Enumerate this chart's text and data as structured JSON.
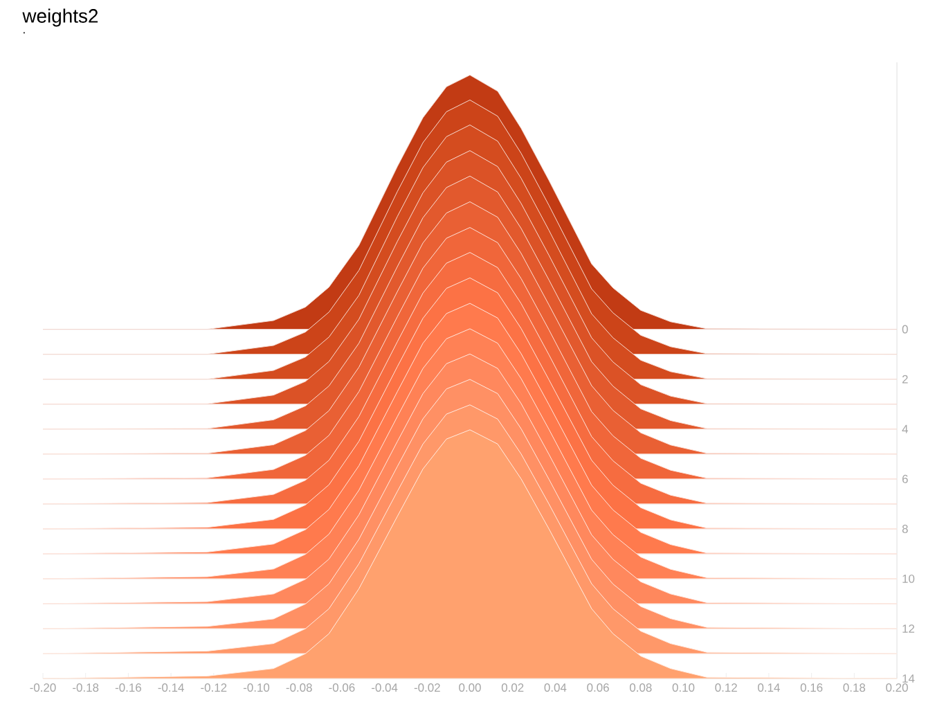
{
  "chart_data": {
    "type": "area",
    "title": "weights2",
    "subtitle": ".",
    "x": [
      -0.2,
      -0.123,
      -0.092,
      -0.077,
      -0.066,
      -0.052,
      -0.034,
      -0.022,
      -0.011,
      0.0,
      0.013,
      0.024,
      0.037,
      0.057,
      0.067,
      0.08,
      0.094,
      0.111,
      0.2
    ],
    "series": [
      {
        "color": "#c23b14",
        "values": [
          0,
          0,
          -0.35,
          -0.89,
          -1.69,
          -3.36,
          -6.52,
          -8.48,
          -9.72,
          -10.19,
          -9.54,
          -8.05,
          -5.97,
          -2.62,
          -1.66,
          -0.76,
          -0.3,
          -0.02,
          0
        ]
      },
      {
        "color": "#cc4419",
        "values": [
          1,
          1,
          0.65,
          0.11,
          -0.69,
          -2.36,
          -5.52,
          -7.48,
          -8.72,
          -9.19,
          -8.54,
          -7.05,
          -4.97,
          -1.62,
          -0.66,
          0.24,
          0.7,
          0.98,
          1
        ]
      },
      {
        "color": "#d44c1f",
        "values": [
          2,
          2,
          1.65,
          1.11,
          0.31,
          -1.36,
          -4.52,
          -6.48,
          -7.72,
          -8.19,
          -7.54,
          -6.05,
          -3.97,
          -0.62,
          0.34,
          1.24,
          1.7,
          1.98,
          2
        ]
      },
      {
        "color": "#db5226",
        "values": [
          3,
          2.99,
          2.64,
          2.09,
          1.29,
          -0.4,
          -3.52,
          -5.47,
          -6.7,
          -7.16,
          -6.52,
          -5.04,
          -2.97,
          0.34,
          1.31,
          2.22,
          2.68,
          2.98,
          3
        ]
      },
      {
        "color": "#e2592d",
        "values": [
          4,
          3.98,
          3.63,
          3.07,
          2.27,
          0.56,
          -2.51,
          -4.47,
          -5.68,
          -6.14,
          -5.5,
          -4.04,
          -1.98,
          1.3,
          2.28,
          3.19,
          3.66,
          3.98,
          4
        ]
      },
      {
        "color": "#e96034",
        "values": [
          5,
          4.97,
          4.63,
          4.06,
          3.26,
          1.52,
          -1.51,
          -3.46,
          -4.66,
          -5.11,
          -4.49,
          -3.04,
          -0.98,
          2.26,
          3.25,
          4.15,
          4.64,
          4.97,
          5
        ]
      },
      {
        "color": "#f0663a",
        "values": [
          6,
          5.96,
          5.62,
          5.05,
          4.25,
          2.5,
          -0.5,
          -2.45,
          -3.65,
          -4.08,
          -3.47,
          -2.03,
          0.02,
          3.3,
          4.27,
          5.17,
          5.65,
          5.97,
          6
        ]
      },
      {
        "color": "#f66c40",
        "values": [
          7,
          6.95,
          6.62,
          6.05,
          5.25,
          3.5,
          0.5,
          -1.45,
          -2.65,
          -3.08,
          -2.47,
          -1.03,
          1.02,
          4.3,
          5.27,
          6.17,
          6.65,
          6.97,
          7
        ]
      },
      {
        "color": "#fc7245",
        "values": [
          8,
          7.94,
          7.62,
          7.04,
          6.23,
          4.49,
          1.5,
          -0.44,
          -1.64,
          -2.06,
          -1.46,
          -0.03,
          2.02,
          5.25,
          6.25,
          7.15,
          7.64,
          7.97,
          8
        ]
      },
      {
        "color": "#ff7a4d",
        "values": [
          9,
          8.93,
          8.61,
          8.03,
          7.22,
          5.47,
          2.5,
          0.56,
          -0.63,
          -1.04,
          -0.45,
          0.98,
          3.02,
          6.25,
          7.24,
          8.14,
          8.63,
          8.97,
          9
        ]
      },
      {
        "color": "#ff8155",
        "values": [
          10,
          9.92,
          9.61,
          9.02,
          8.21,
          6.45,
          3.5,
          1.57,
          0.38,
          -0.02,
          0.56,
          1.98,
          4.01,
          7.25,
          8.23,
          9.13,
          9.62,
          9.96,
          10
        ]
      },
      {
        "color": "#ff885d",
        "values": [
          11,
          10.92,
          10.61,
          10.02,
          9.21,
          7.44,
          4.5,
          2.58,
          1.38,
          0.99,
          1.57,
          2.98,
          5.01,
          8.24,
          9.22,
          10.12,
          10.61,
          10.96,
          11
        ]
      },
      {
        "color": "#ff9064",
        "values": [
          12,
          11.91,
          11.61,
          11.01,
          10.2,
          8.42,
          5.5,
          3.59,
          2.39,
          2.01,
          2.58,
          3.99,
          6.01,
          9.22,
          10.21,
          11.11,
          11.6,
          11.95,
          12
        ]
      },
      {
        "color": "#ff9869",
        "values": [
          13,
          12.9,
          12.6,
          12.0,
          11.2,
          9.4,
          6.5,
          4.6,
          3.4,
          3.03,
          3.6,
          5.0,
          7.0,
          10.2,
          11.2,
          12.1,
          12.6,
          12.95,
          13
        ]
      },
      {
        "color": "#ffa16e",
        "values": [
          14,
          13.9,
          13.6,
          13.0,
          12.2,
          10.4,
          7.5,
          5.6,
          4.4,
          4.03,
          4.6,
          6.0,
          8.0,
          11.2,
          12.2,
          13.1,
          13.6,
          13.95,
          14
        ]
      }
    ],
    "xlim": [
      -0.2,
      0.2
    ],
    "xticks": [
      {
        "value": -0.2,
        "label": "-0.20"
      },
      {
        "value": -0.18,
        "label": "-0.18"
      },
      {
        "value": -0.16,
        "label": "-0.16"
      },
      {
        "value": -0.14,
        "label": "-0.14"
      },
      {
        "value": -0.12,
        "label": "-0.12"
      },
      {
        "value": -0.1,
        "label": "-0.10"
      },
      {
        "value": -0.08,
        "label": "-0.08"
      },
      {
        "value": -0.06,
        "label": "-0.06"
      },
      {
        "value": -0.04,
        "label": "-0.04"
      },
      {
        "value": -0.02,
        "label": "-0.02"
      },
      {
        "value": 0,
        "label": "0.00"
      },
      {
        "value": 0.02,
        "label": "0.02"
      },
      {
        "value": 0.04,
        "label": "0.04"
      },
      {
        "value": 0.06,
        "label": "0.06"
      },
      {
        "value": 0.08,
        "label": "0.08"
      },
      {
        "value": 0.1,
        "label": "0.10"
      },
      {
        "value": 0.12,
        "label": "0.12"
      },
      {
        "value": 0.14,
        "label": "0.14"
      },
      {
        "value": 0.16,
        "label": "0.16"
      },
      {
        "value": 0.18,
        "label": "0.18"
      },
      {
        "value": 0.2,
        "label": "0.20"
      }
    ],
    "yticks": [
      0,
      {
        "value": 1,
        "label": null
      },
      2,
      {
        "value": 3,
        "label": null
      },
      4,
      {
        "value": 5,
        "label": null
      },
      6,
      {
        "value": 7,
        "label": null
      },
      8,
      {
        "value": 9,
        "label": null
      },
      10,
      {
        "value": 11,
        "label": null
      },
      12,
      {
        "value": 13,
        "label": null
      },
      14
    ],
    "ylim": [
      14,
      -10.7
    ],
    "grid": "y"
  }
}
